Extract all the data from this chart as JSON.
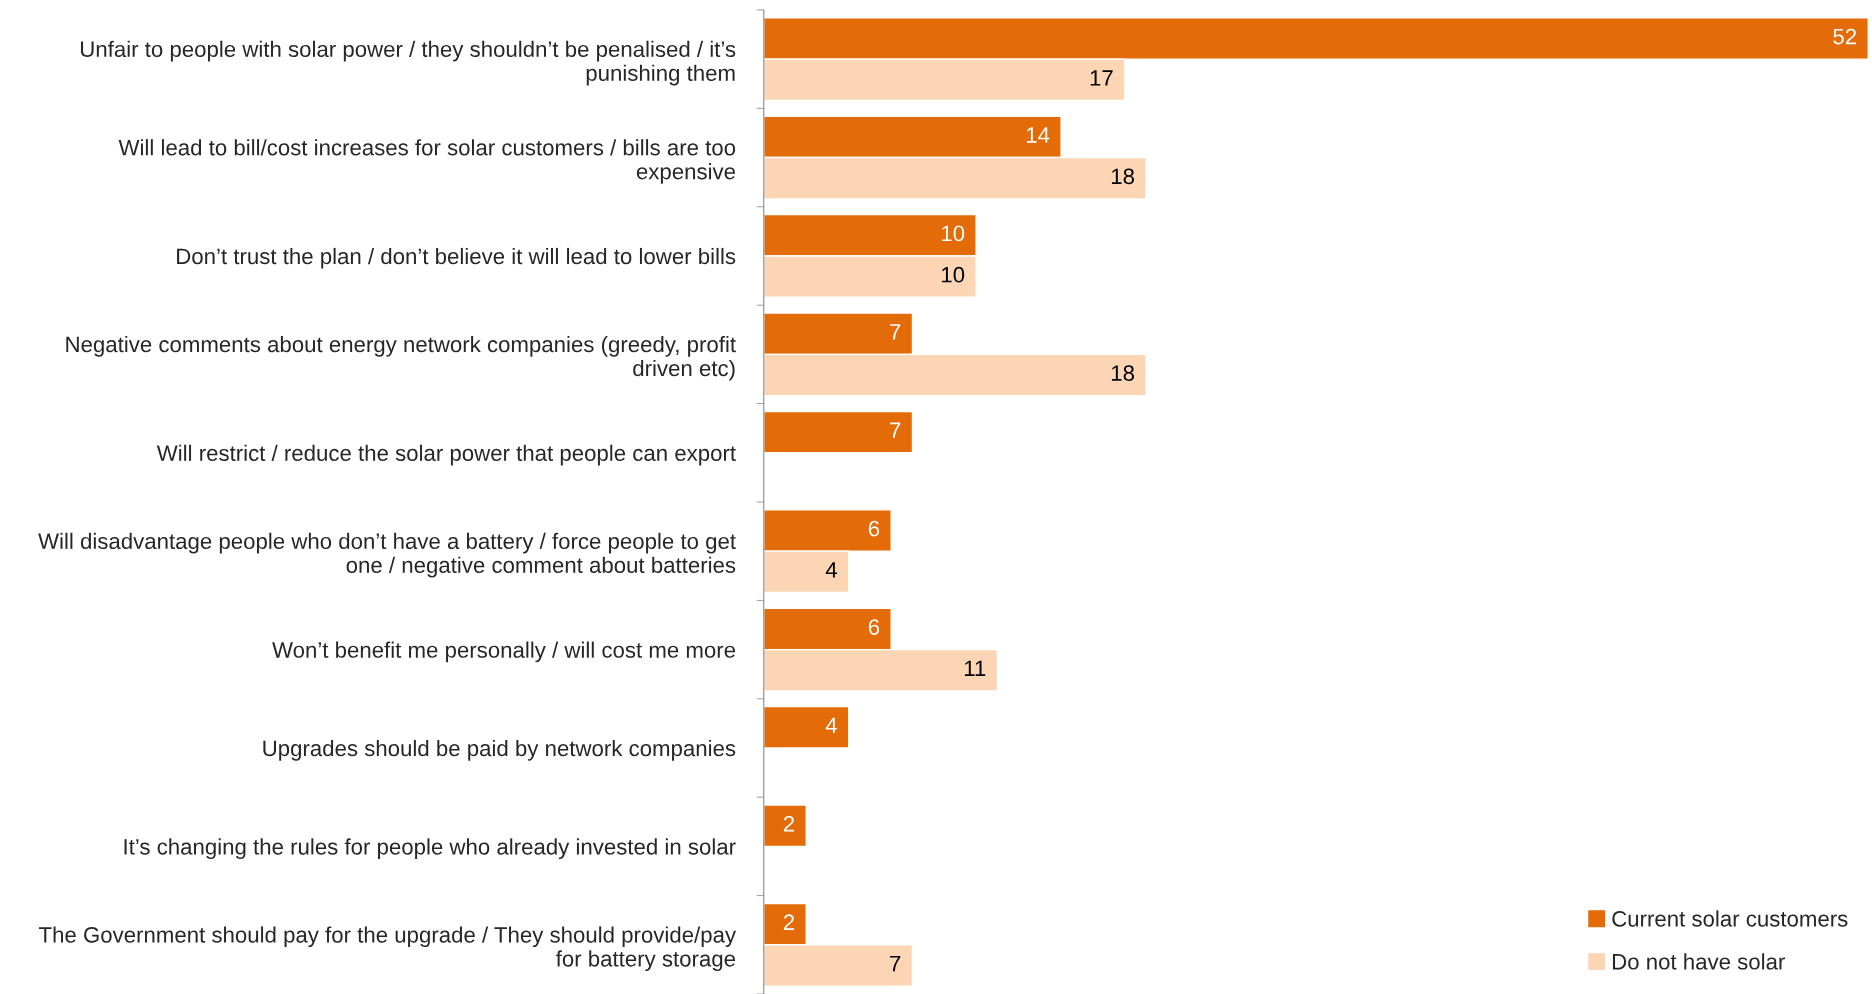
{
  "chart_data": {
    "type": "bar",
    "orientation": "horizontal",
    "categories": [
      "Unfair to people with solar power / they shouldn’t be penalised / it’s punishing them",
      "Will lead to bill/cost increases for solar customers / bills are too expensive",
      "Don’t trust the plan / don’t believe it will lead to lower bills",
      "Negative comments about energy network companies (greedy, profit driven etc)",
      "Will restrict / reduce the solar power that people can export",
      "Will disadvantage people who don’t have a battery / force people to get one / negative comment about batteries",
      "Won’t benefit me personally / will cost me more",
      "Upgrades should be paid by network companies",
      "It’s changing the rules for people who already invested in solar",
      "The Government should pay for the upgrade / They should provide/pay for battery storage"
    ],
    "series": [
      {
        "name": "Current solar customers",
        "color": "#e36c09",
        "values": [
          52,
          14,
          10,
          7,
          7,
          6,
          6,
          4,
          2,
          2
        ]
      },
      {
        "name": "Do not have solar",
        "color": "#fcd5b4",
        "values": [
          17,
          18,
          10,
          18,
          null,
          4,
          11,
          null,
          null,
          7
        ]
      }
    ],
    "data_labels": true,
    "legend": "bottom right",
    "grid": false
  }
}
